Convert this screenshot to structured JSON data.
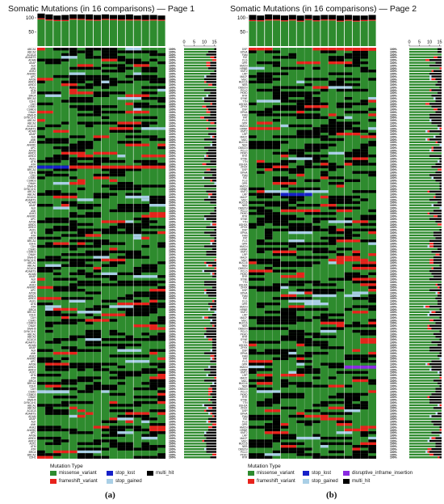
{
  "figure_captions": {
    "a": "(a)",
    "b": "(b)"
  },
  "legend": {
    "title": "Mutation Type",
    "a": [
      {
        "label": "missense_variant",
        "color": "#2e8b2e"
      },
      {
        "label": "frameshift_variant",
        "color": "#e8221b"
      },
      {
        "label": "stop_lost",
        "color": "#1620c8"
      },
      {
        "label": "stop_gained",
        "color": "#a9cfe6"
      },
      {
        "label": "multi_hit",
        "color": "#000000"
      }
    ],
    "b": [
      {
        "label": "missense_variant",
        "color": "#2e8b2e"
      },
      {
        "label": "frameshift_variant",
        "color": "#e8221b"
      },
      {
        "label": "stop_lost",
        "color": "#1620c8"
      },
      {
        "label": "stop_gained",
        "color": "#a9cfe6"
      },
      {
        "label": "disruptive_inframe_insertion",
        "color": "#8a2be2"
      },
      {
        "label": "multi_hit",
        "color": "#000000"
      }
    ]
  },
  "chart_data": [
    {
      "type": "heatmap",
      "title": "Somatic Mutations (in 16 comparisons) — Page 1",
      "top_bar_axis": {
        "ticks": [
          50,
          100
        ],
        "ylim": [
          0,
          120
        ]
      },
      "side_bar_axis": {
        "ticks": [
          0,
          5,
          10,
          15
        ],
        "xlim": [
          0,
          16
        ]
      },
      "n_samples": 16,
      "n_genes": 150,
      "row_percent_label": "100%",
      "top_bar_values": [
        115,
        112,
        108,
        110,
        112,
        112,
        112,
        110,
        112,
        110,
        110,
        112,
        108,
        110,
        110,
        108
      ],
      "top_bar_multi_hit": [
        17,
        18,
        16,
        18,
        15,
        16,
        18,
        17,
        16,
        15,
        16,
        18,
        14,
        17,
        16,
        15
      ],
      "genes_visible": [
        "ABCA1",
        "ABCA2",
        "ACACA",
        "ADAMTS",
        "ADAM",
        "AKAP",
        "ALK",
        "ANK",
        "ANK2",
        "ANKRD",
        "APC",
        "APOB",
        "ARID1",
        "ARID2",
        "ASXL",
        "ATM",
        "ATR",
        "BRCA",
        "BRCA2",
        "CDH1",
        "CDH",
        "CSMD",
        "CSMD3",
        "DNAH",
        "DNAH5",
        "DYNC1H1"
      ]
    },
    {
      "type": "heatmap",
      "title": "Somatic Mutations (in 16 comparisons) — Page 2",
      "top_bar_axis": {
        "ticks": [
          50,
          100
        ],
        "ylim": [
          0,
          120
        ]
      },
      "side_bar_axis": {
        "ticks": [
          0,
          5,
          10,
          15
        ],
        "xlim": [
          0,
          16
        ]
      },
      "n_samples": 16,
      "n_genes": 150,
      "row_percent_label": "100%",
      "top_bar_values": [
        110,
        108,
        112,
        110,
        108,
        110,
        108,
        110,
        108,
        110,
        110,
        108,
        110,
        108,
        108,
        110
      ],
      "top_bar_multi_hit": [
        18,
        17,
        18,
        16,
        17,
        16,
        18,
        15,
        17,
        16,
        16,
        18,
        17,
        18,
        16,
        17
      ],
      "genes_visible": [
        "DSP",
        "EPHA",
        "FAM",
        "FAT",
        "FLG",
        "GPR",
        "HMCN",
        "HRNR",
        "KMT2",
        "LRP",
        "MACF",
        "MUC",
        "MUC16",
        "NEB",
        "OBSCN",
        "PCLO",
        "PKHD",
        "RYR",
        "SYNE",
        "TTN",
        "USH2A",
        "ZFHX"
      ]
    }
  ]
}
